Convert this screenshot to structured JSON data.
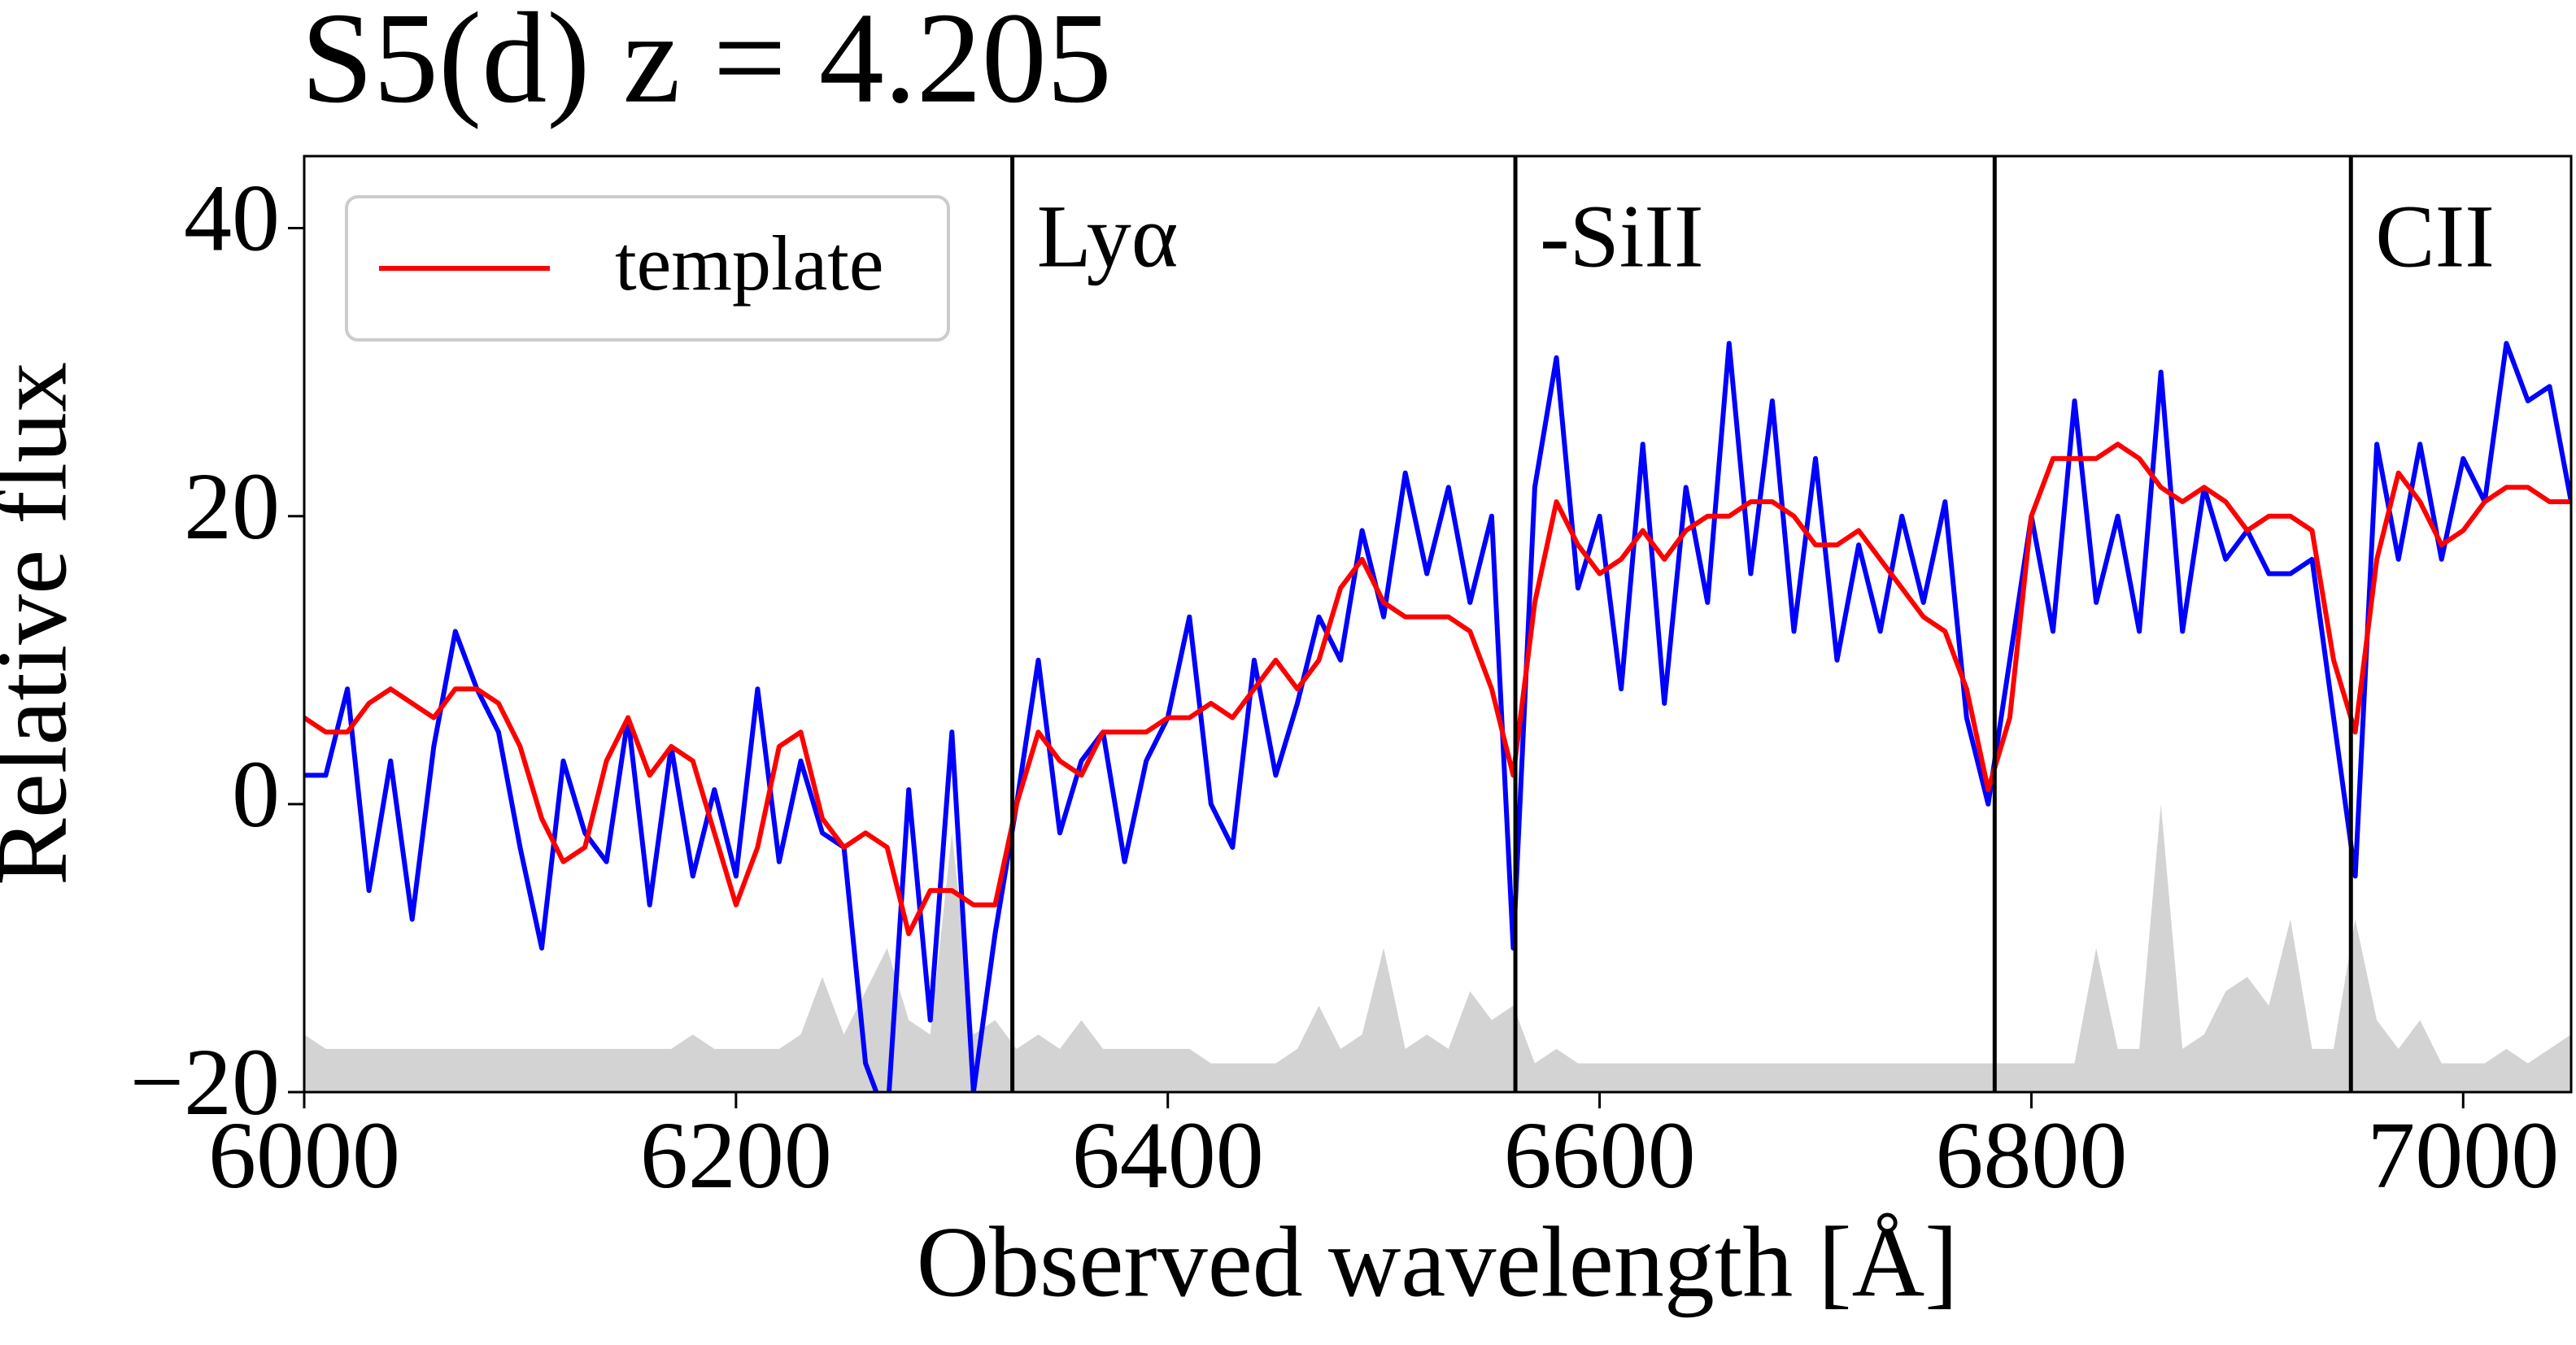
{
  "chart_data": {
    "type": "line",
    "title": "S5(d) z = 4.205",
    "xlabel": "Observed wavelength  [Å]",
    "ylabel": "Relative flux",
    "xlim": [
      6000,
      7050
    ],
    "ylim": [
      -20,
      45
    ],
    "xticks": [
      6000,
      6200,
      6400,
      6600,
      6800,
      7000
    ],
    "yticks": [
      {
        "value": -20,
        "label": "−20"
      },
      0,
      20,
      40
    ],
    "legend": "upper left",
    "x": [
      6000,
      6010,
      6020,
      6030,
      6040,
      6050,
      6060,
      6070,
      6080,
      6090,
      6100,
      6110,
      6120,
      6130,
      6140,
      6150,
      6160,
      6170,
      6180,
      6190,
      6200,
      6210,
      6220,
      6230,
      6240,
      6250,
      6260,
      6270,
      6280,
      6290,
      6300,
      6310,
      6320,
      6330,
      6340,
      6350,
      6360,
      6370,
      6380,
      6390,
      6400,
      6410,
      6420,
      6430,
      6440,
      6450,
      6460,
      6470,
      6480,
      6490,
      6500,
      6510,
      6520,
      6530,
      6540,
      6550,
      6560,
      6570,
      6580,
      6590,
      6600,
      6610,
      6620,
      6630,
      6640,
      6650,
      6660,
      6670,
      6680,
      6690,
      6700,
      6710,
      6720,
      6730,
      6740,
      6750,
      6760,
      6770,
      6780,
      6790,
      6800,
      6810,
      6820,
      6830,
      6840,
      6850,
      6860,
      6870,
      6880,
      6890,
      6900,
      6910,
      6920,
      6930,
      6940,
      6950,
      6960,
      6970,
      6980,
      6990,
      7000,
      7010,
      7020,
      7030,
      7040,
      7050
    ],
    "series": [
      {
        "color": "#d3d3d3",
        "fill": true,
        "values": [
          -16,
          -17,
          -17,
          -17,
          -17,
          -17,
          -17,
          -17,
          -17,
          -17,
          -17,
          -17,
          -17,
          -17,
          -17,
          -17,
          -17,
          -17,
          -16,
          -17,
          -17,
          -17,
          -17,
          -16,
          -12,
          -16,
          -13,
          -10,
          -15,
          -16,
          -2,
          -16,
          -15,
          -17,
          -16,
          -17,
          -15,
          -17,
          -17,
          -17,
          -17,
          -17,
          -18,
          -18,
          -18,
          -18,
          -17,
          -14,
          -17,
          -16,
          -10,
          -17,
          -16,
          -17,
          -13,
          -15,
          -14,
          -18,
          -17,
          -18,
          -18,
          -18,
          -18,
          -18,
          -18,
          -18,
          -18,
          -18,
          -18,
          -18,
          -18,
          -18,
          -18,
          -18,
          -18,
          -18,
          -18,
          -18,
          -18,
          -18,
          -18,
          -18,
          -18,
          -10,
          -17,
          -17,
          0,
          -17,
          -16,
          -13,
          -12,
          -14,
          -8,
          -17,
          -17,
          -8,
          -15,
          -17,
          -15,
          -18,
          -18,
          -18,
          -17,
          -18,
          -17,
          -16
        ]
      },
      {
        "color": "#0000ff",
        "values": [
          2,
          2,
          8,
          -6,
          3,
          -8,
          4,
          12,
          8,
          5,
          -3,
          -10,
          3,
          -2,
          -4,
          6,
          -7,
          4,
          -5,
          1,
          -5,
          8,
          -4,
          3,
          -2,
          -3,
          -18,
          -22,
          1,
          -15,
          5,
          -20,
          -9,
          0,
          10,
          -2,
          3,
          5,
          -4,
          3,
          6,
          13,
          0,
          -3,
          10,
          2,
          7,
          13,
          10,
          19,
          13,
          23,
          16,
          22,
          14,
          20,
          -10,
          22,
          31,
          15,
          20,
          8,
          25,
          7,
          22,
          14,
          32,
          16,
          28,
          12,
          24,
          10,
          18,
          12,
          20,
          14,
          21,
          6,
          0,
          10,
          20,
          12,
          28,
          14,
          20,
          12,
          30,
          12,
          22,
          17,
          19,
          16,
          16,
          17,
          6,
          -5,
          25,
          17,
          25,
          17,
          24,
          21,
          32,
          28,
          29,
          21
        ]
      },
      {
        "name": "template",
        "color": "#ff0000",
        "values": [
          6,
          5,
          5,
          7,
          8,
          7,
          6,
          8,
          8,
          7,
          4,
          -1,
          -4,
          -3,
          3,
          6,
          2,
          4,
          3,
          -2,
          -7,
          -3,
          4,
          5,
          -1,
          -3,
          -2,
          -3,
          -9,
          -6,
          -6,
          -7,
          -7,
          0,
          5,
          3,
          2,
          5,
          5,
          5,
          6,
          6,
          7,
          6,
          8,
          10,
          8,
          10,
          15,
          17,
          14,
          13,
          13,
          13,
          12,
          8,
          2,
          14,
          21,
          18,
          16,
          17,
          19,
          17,
          19,
          20,
          20,
          21,
          21,
          20,
          18,
          18,
          19,
          17,
          15,
          13,
          12,
          8,
          1,
          6,
          20,
          24,
          24,
          24,
          25,
          24,
          22,
          21,
          22,
          21,
          19,
          20,
          20,
          19,
          10,
          5,
          17,
          23,
          21,
          18,
          19,
          21,
          22,
          22,
          21,
          21
        ]
      }
    ],
    "annotations": [
      {
        "x": 6328,
        "label": "Lyα"
      },
      {
        "x": 6561,
        "label": "-SiII"
      },
      {
        "x": 6783
      },
      {
        "x": 6948,
        "label": "CII"
      }
    ]
  }
}
